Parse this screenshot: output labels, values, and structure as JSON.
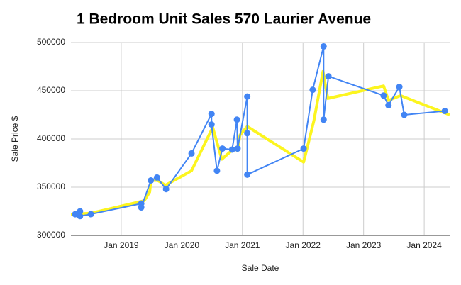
{
  "chart_data": {
    "type": "line",
    "title": "1 Bedroom Unit Sales 570 Laurier Avenue",
    "x_label": "Sale Date",
    "y_label": "Sale Price $",
    "xlim": [
      2018.17,
      2024.42
    ],
    "ylim": [
      300000,
      500000
    ],
    "xticks": [
      {
        "value": 2019,
        "label": "Jan 2019"
      },
      {
        "value": 2020,
        "label": "Jan 2020"
      },
      {
        "value": 2021,
        "label": "Jan 2021"
      },
      {
        "value": 2022,
        "label": "Jan 2022"
      },
      {
        "value": 2023,
        "label": "Jan 2023"
      },
      {
        "value": 2024,
        "label": "Jan 2024"
      }
    ],
    "yticks": [
      300000,
      350000,
      400000,
      450000,
      500000
    ],
    "grid": true,
    "series": [
      {
        "color": "#4285f4",
        "markers": true,
        "x": [
          2018.24,
          2018.32,
          2018.32,
          2018.5,
          2019.33,
          2019.33,
          2019.49,
          2019.59,
          2019.74,
          2020.16,
          2020.49,
          2020.49,
          2020.58,
          2020.67,
          2020.83,
          2020.91,
          2020.92,
          2021.08,
          2021.08,
          2021.08,
          2022.01,
          2022.16,
          2022.34,
          2022.34,
          2022.42,
          2023.33,
          2023.41,
          2023.59,
          2023.67,
          2024.34
        ],
        "values": [
          322000,
          325000,
          320000,
          322000,
          333000,
          329000,
          357000,
          360000,
          348000,
          385000,
          426000,
          415000,
          367000,
          390000,
          389000,
          420000,
          390000,
          444000,
          406000,
          363000,
          390000,
          451000,
          496000,
          420000,
          465000,
          445000,
          435000,
          454000,
          425000,
          429000
        ]
      },
      {
        "color": "#fcf51f",
        "markers": false,
        "x": [
          2018.17,
          2018.5,
          2019.38,
          2019.47,
          2019.49,
          2019.6,
          2019.73,
          2020.16,
          2020.51,
          2020.66,
          2020.86,
          2020.92,
          2020.96,
          2021.08,
          2022.01,
          2022.18,
          2022.33,
          2022.41,
          2023.33,
          2023.41,
          2023.61,
          2024.42
        ],
        "values": [
          322000,
          323000,
          336000,
          345000,
          357000,
          357000,
          352000,
          367000,
          412000,
          379000,
          390000,
          388000,
          404000,
          413000,
          376000,
          419000,
          470000,
          442000,
          455000,
          440000,
          445000,
          425000
        ]
      }
    ]
  }
}
